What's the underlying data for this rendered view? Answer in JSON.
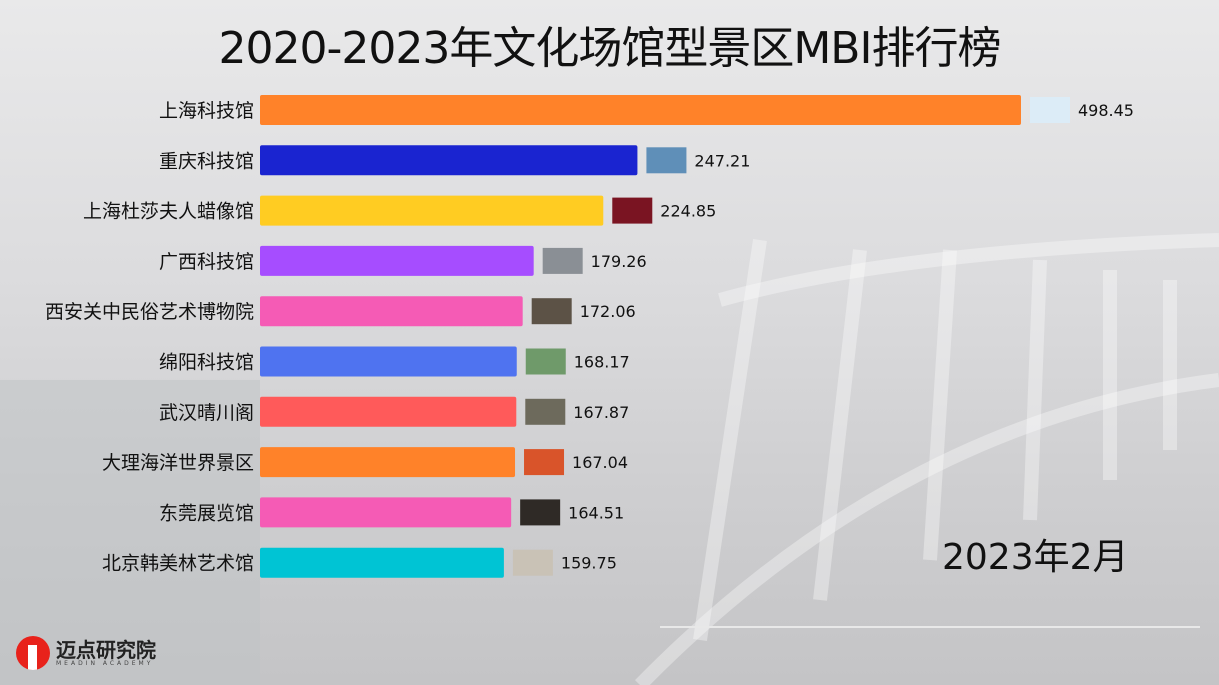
{
  "title": "2020-2023年文化场馆型景区MBI排行榜",
  "date_label": "2023年2月",
  "logo": {
    "name": "迈点研究院",
    "subtitle": "MEADIN ACADEMY"
  },
  "chart_data": {
    "type": "bar",
    "orientation": "horizontal",
    "title": "2020-2023年文化场馆型景区MBI排行榜",
    "xlabel": "",
    "ylabel": "",
    "xlim": [
      0,
      498.45
    ],
    "grid": false,
    "categories": [
      "上海科技馆",
      "重庆科技馆",
      "上海杜莎夫人蜡像馆",
      "广西科技馆",
      "西安关中民俗艺术博物院",
      "绵阳科技馆",
      "武汉晴川阁",
      "大理海洋世界景区",
      "东莞展览馆",
      "北京韩美林艺术馆"
    ],
    "values": [
      498.45,
      247.21,
      224.85,
      179.26,
      172.06,
      168.17,
      167.87,
      167.04,
      164.51,
      159.75
    ],
    "value_labels": [
      "498.45",
      "247.21",
      "224.85",
      "179.26",
      "172.06",
      "168.17",
      "167.87",
      "167.04",
      "164.51",
      "159.75"
    ],
    "colors": [
      "#FF8229",
      "#1A24D0",
      "#FFCC22",
      "#A64DFF",
      "#F55BB5",
      "#4F73F0",
      "#FF5A5A",
      "#FF8229",
      "#F55BB5",
      "#00C4D4"
    ],
    "thumb_colors": [
      "#dcecf7",
      "#5f8fb8",
      "#7a1422",
      "#8a8f95",
      "#5c5246",
      "#6f9a6a",
      "#6d6a5c",
      "#d9542a",
      "#2f2a26",
      "#c9c2b6"
    ]
  }
}
